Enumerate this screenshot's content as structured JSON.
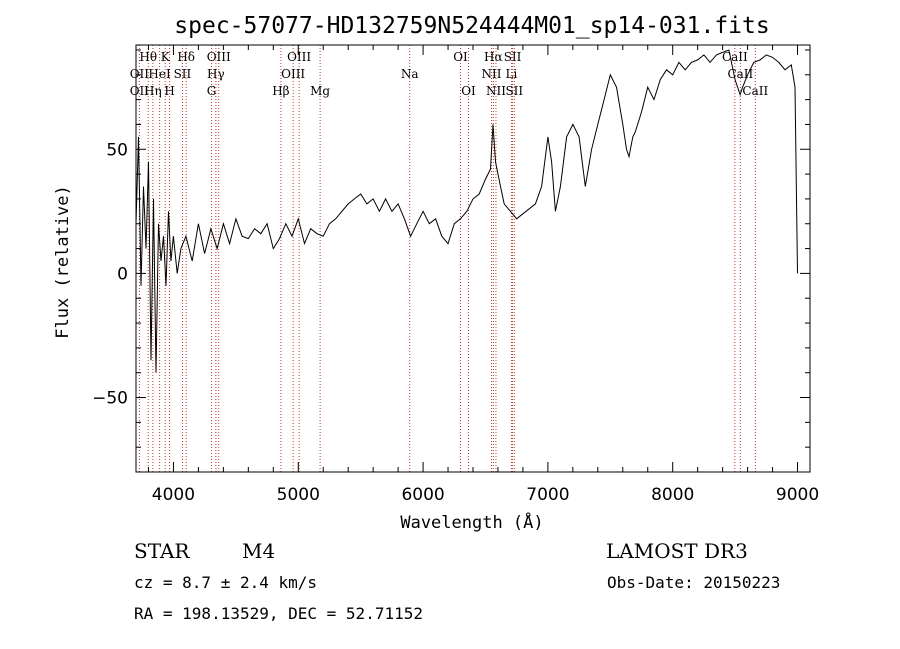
{
  "chart_data": {
    "type": "line",
    "title": "spec-57077-HD132759N524444M01_sp14-031.fits",
    "xlabel": "Wavelength (Å)",
    "ylabel": "Flux (relative)",
    "xlim": [
      3700,
      9100
    ],
    "ylim": [
      -80,
      92
    ],
    "x_ticks": [
      4000,
      5000,
      6000,
      7000,
      8000,
      9000
    ],
    "y_ticks": [
      -50,
      0,
      50
    ],
    "grid": false,
    "series": [
      {
        "name": "",
        "x": [
          3700,
          3720,
          3740,
          3760,
          3780,
          3800,
          3820,
          3840,
          3860,
          3880,
          3900,
          3920,
          3940,
          3960,
          3980,
          4000,
          4030,
          4060,
          4100,
          4150,
          4200,
          4250,
          4300,
          4350,
          4400,
          4450,
          4500,
          4550,
          4600,
          4650,
          4700,
          4750,
          4800,
          4850,
          4900,
          4950,
          5000,
          5050,
          5100,
          5150,
          5200,
          5250,
          5300,
          5350,
          5400,
          5450,
          5500,
          5550,
          5600,
          5650,
          5700,
          5750,
          5800,
          5850,
          5900,
          5950,
          6000,
          6050,
          6100,
          6150,
          6200,
          6250,
          6300,
          6350,
          6400,
          6450,
          6500,
          6540,
          6560,
          6580,
          6600,
          6620,
          6650,
          6700,
          6750,
          6800,
          6850,
          6900,
          6950,
          7000,
          7030,
          7060,
          7100,
          7150,
          7200,
          7250,
          7300,
          7350,
          7400,
          7450,
          7500,
          7550,
          7600,
          7630,
          7650,
          7680,
          7700,
          7750,
          7800,
          7850,
          7900,
          7950,
          8000,
          8050,
          8100,
          8150,
          8200,
          8250,
          8300,
          8350,
          8400,
          8450,
          8500,
          8540,
          8560,
          8600,
          8650,
          8700,
          8750,
          8800,
          8850,
          8900,
          8950,
          8980,
          9000
        ],
        "y": [
          20,
          55,
          -5,
          35,
          10,
          45,
          -35,
          30,
          -40,
          20,
          5,
          15,
          -5,
          25,
          5,
          15,
          0,
          10,
          15,
          5,
          20,
          8,
          18,
          10,
          20,
          12,
          22,
          15,
          14,
          18,
          16,
          20,
          10,
          14,
          20,
          15,
          22,
          12,
          18,
          16,
          15,
          20,
          22,
          25,
          28,
          30,
          32,
          28,
          30,
          25,
          30,
          25,
          28,
          22,
          15,
          20,
          25,
          20,
          22,
          15,
          12,
          20,
          22,
          25,
          30,
          32,
          38,
          42,
          60,
          45,
          40,
          35,
          28,
          25,
          22,
          24,
          26,
          28,
          35,
          55,
          45,
          25,
          35,
          55,
          60,
          55,
          35,
          50,
          60,
          70,
          80,
          75,
          60,
          50,
          47,
          55,
          57,
          65,
          75,
          70,
          78,
          82,
          80,
          85,
          82,
          85,
          86,
          88,
          85,
          88,
          89,
          90,
          78,
          72,
          75,
          80,
          85,
          86,
          88,
          87,
          85,
          82,
          84,
          75,
          0
        ]
      }
    ],
    "spectral_lines": [
      {
        "label": "Hθ",
        "x": 3798,
        "row": 1
      },
      {
        "label": "OII",
        "x": 3727,
        "row": 2
      },
      {
        "label": "OII",
        "x": 3727,
        "row": 3
      },
      {
        "label": "Hη",
        "x": 3835,
        "row": 3
      },
      {
        "label": "HeI",
        "x": 3889,
        "row": 2
      },
      {
        "label": "K",
        "x": 3934,
        "row": 1
      },
      {
        "label": "H",
        "x": 3969,
        "row": 3
      },
      {
        "label": "SII",
        "x": 4072,
        "row": 2
      },
      {
        "label": "Hδ",
        "x": 4102,
        "row": 1
      },
      {
        "label": "OIII",
        "x": 4363,
        "row": 1
      },
      {
        "label": "Hγ",
        "x": 4340,
        "row": 2
      },
      {
        "label": "G",
        "x": 4305,
        "row": 3
      },
      {
        "label": "Hβ",
        "x": 4861,
        "row": 3
      },
      {
        "label": "OIII",
        "x": 5007,
        "row": 1
      },
      {
        "label": "OIII",
        "x": 4959,
        "row": 2
      },
      {
        "label": "Mg",
        "x": 5175,
        "row": 3
      },
      {
        "label": "Na",
        "x": 5893,
        "row": 2
      },
      {
        "label": "OI",
        "x": 6300,
        "row": 1
      },
      {
        "label": "OI",
        "x": 6364,
        "row": 3
      },
      {
        "label": "Hα",
        "x": 6563,
        "row": 1
      },
      {
        "label": "NII",
        "x": 6548,
        "row": 2
      },
      {
        "label": "NII",
        "x": 6584,
        "row": 3
      },
      {
        "label": "SII",
        "x": 6717,
        "row": 1
      },
      {
        "label": "Li",
        "x": 6708,
        "row": 2
      },
      {
        "label": "SII",
        "x": 6731,
        "row": 3
      },
      {
        "label": "CaII",
        "x": 8498,
        "row": 1
      },
      {
        "label": "CaII",
        "x": 8542,
        "row": 2
      },
      {
        "label": "CaII",
        "x": 8662,
        "row": 3
      }
    ]
  },
  "info": {
    "object_class": "STAR",
    "subclass": "M4",
    "survey": "LAMOST DR3",
    "redshift": "cz = 8.7 ± 2.4 km/s",
    "obs_date": "Obs-Date: 20150223",
    "coords": "RA = 198.13529, DEC =  52.71152"
  },
  "colors": {
    "line": "#000000",
    "marker_lines": "#c0392b"
  }
}
